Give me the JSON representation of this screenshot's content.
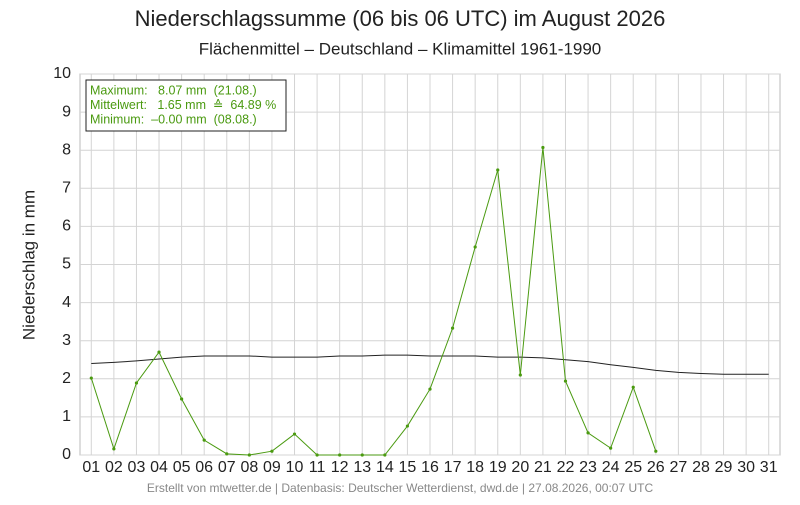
{
  "chart_data": {
    "type": "line",
    "title": "Niederschlagssumme (06 bis 06 UTC) im August 2026",
    "subtitle": "Flächenmittel – Deutschland – Klimamittel 1961-1990",
    "y_label": "Niederschlag in mm",
    "footer": "Erstellt von mtwetter.de | Datenbasis: Deutscher Wetterdienst, dwd.de | 27.08.2026, 00:07 UTC",
    "info_box": [
      "Maximum:   8.07 mm  (21.08.)",
      "Mittelwert:   1.65 mm  ≙  64.89 %",
      "Minimum:  –0.00 mm  (08.08.)"
    ],
    "categories": [
      "01",
      "02",
      "03",
      "04",
      "05",
      "06",
      "07",
      "08",
      "09",
      "10",
      "11",
      "12",
      "13",
      "14",
      "15",
      "16",
      "17",
      "18",
      "19",
      "20",
      "21",
      "22",
      "23",
      "24",
      "25",
      "26",
      "27",
      "28",
      "29",
      "30",
      "31"
    ],
    "series": [
      {
        "color": "#222222",
        "values": [
          2.4,
          2.43,
          2.47,
          2.52,
          2.57,
          2.6,
          2.6,
          2.6,
          2.57,
          2.57,
          2.57,
          2.6,
          2.6,
          2.62,
          2.62,
          2.6,
          2.6,
          2.6,
          2.57,
          2.57,
          2.55,
          2.5,
          2.45,
          2.37,
          2.3,
          2.22,
          2.17,
          2.14,
          2.12,
          2.12,
          2.12
        ]
      },
      {
        "color": "#4a9a10",
        "values": [
          2.02,
          0.16,
          1.89,
          2.7,
          1.47,
          0.39,
          0.03,
          0,
          0.1,
          0.55,
          0,
          0,
          0,
          0,
          0.76,
          1.73,
          3.33,
          5.46,
          7.48,
          2.1,
          8.07,
          1.94,
          0.58,
          0.18,
          1.78,
          0.1,
          null,
          null,
          null,
          null,
          null
        ]
      }
    ],
    "ylim": [
      0,
      10
    ],
    "yticks": [
      0,
      1,
      2,
      3,
      4,
      5,
      6,
      7,
      8,
      9,
      10
    ],
    "grid": true
  }
}
